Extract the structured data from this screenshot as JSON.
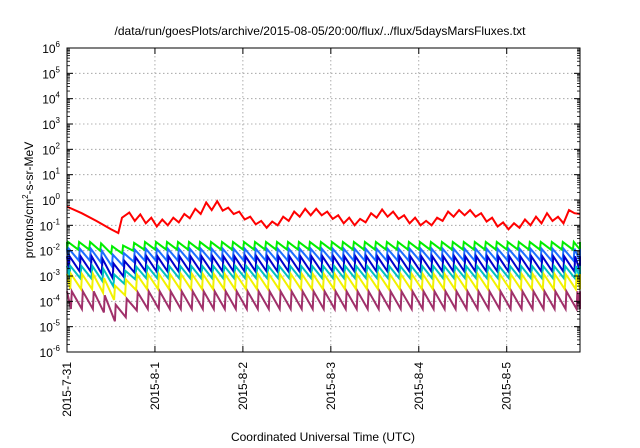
{
  "chart_data": {
    "type": "line",
    "title": "/data/run/goesPlots/archive/2015-08-05/20:00/flux/../flux/5daysMarsFluxes.txt",
    "xlabel": "Coordinated Universal Time (UTC)",
    "ylabel": {
      "base": "protons/cm",
      "sup": "2",
      "rest": "-s-sr-MeV"
    },
    "y_scale": "log",
    "ylim": [
      1e-06,
      1000000.0
    ],
    "y_ticks": [
      {
        "base": "10",
        "exp": "-6",
        "value": -6
      },
      {
        "base": "10",
        "exp": "-5",
        "value": -5
      },
      {
        "base": "10",
        "exp": "-4",
        "value": -4
      },
      {
        "base": "10",
        "exp": "-3",
        "value": -3
      },
      {
        "base": "10",
        "exp": "-2",
        "value": -2
      },
      {
        "base": "10",
        "exp": "-1",
        "value": -1
      },
      {
        "base": "10",
        "exp": "0",
        "value": 0
      },
      {
        "base": "10",
        "exp": "1",
        "value": 1
      },
      {
        "base": "10",
        "exp": "2",
        "value": 2
      },
      {
        "base": "10",
        "exp": "3",
        "value": 3
      },
      {
        "base": "10",
        "exp": "4",
        "value": 4
      },
      {
        "base": "10",
        "exp": "5",
        "value": 5
      },
      {
        "base": "10",
        "exp": "6",
        "value": 6
      }
    ],
    "xlim": [
      "2015-07-31 00:00",
      "2015-08-05 20:00"
    ],
    "x_ticks": [
      {
        "label": "2015-7-31",
        "value": "2015-07-31 00:00"
      },
      {
        "label": "2015-8-1",
        "value": "2015-08-01 00:00"
      },
      {
        "label": "2015-8-2",
        "value": "2015-08-02 00:00"
      },
      {
        "label": "2015-8-3",
        "value": "2015-08-03 00:00"
      },
      {
        "label": "2015-8-4",
        "value": "2015-08-04 00:00"
      },
      {
        "label": "2015-8-5",
        "value": "2015-08-05 00:00"
      }
    ],
    "grid": true,
    "series": [
      {
        "color": "#ff0000",
        "points": [
          [
            "2015-07-31 00:00",
            0.55
          ],
          [
            "2015-07-31 04:00",
            0.3
          ],
          [
            "2015-07-31 08:00",
            0.15
          ],
          [
            "2015-07-31 12:00",
            0.07
          ],
          [
            "2015-07-31 14:00",
            0.05
          ],
          [
            "2015-07-31 15:00",
            0.2
          ],
          [
            "2015-07-31 17:00",
            0.32
          ],
          [
            "2015-07-31 18:30",
            0.15
          ],
          [
            "2015-07-31 20:00",
            0.27
          ],
          [
            "2015-07-31 21:30",
            0.12
          ],
          [
            "2015-07-31 23:00",
            0.2
          ],
          [
            "2015-08-01 00:30",
            0.09
          ],
          [
            "2015-08-01 02:00",
            0.17
          ],
          [
            "2015-08-01 03:30",
            0.1
          ],
          [
            "2015-08-01 05:00",
            0.2
          ],
          [
            "2015-08-01 06:30",
            0.13
          ],
          [
            "2015-08-01 08:00",
            0.28
          ],
          [
            "2015-08-01 09:30",
            0.19
          ],
          [
            "2015-08-01 11:00",
            0.45
          ],
          [
            "2015-08-01 12:30",
            0.28
          ],
          [
            "2015-08-01 14:00",
            0.8
          ],
          [
            "2015-08-01 15:30",
            0.4
          ],
          [
            "2015-08-01 17:00",
            0.9
          ],
          [
            "2015-08-01 18:30",
            0.38
          ],
          [
            "2015-08-01 20:00",
            0.5
          ],
          [
            "2015-08-01 21:30",
            0.28
          ],
          [
            "2015-08-01 23:00",
            0.35
          ],
          [
            "2015-08-02 00:30",
            0.17
          ],
          [
            "2015-08-02 02:00",
            0.22
          ],
          [
            "2015-08-02 03:30",
            0.11
          ],
          [
            "2015-08-02 05:00",
            0.15
          ],
          [
            "2015-08-02 06:30",
            0.08
          ],
          [
            "2015-08-02 08:00",
            0.14
          ],
          [
            "2015-08-02 09:30",
            0.1
          ],
          [
            "2015-08-02 11:00",
            0.22
          ],
          [
            "2015-08-02 12:30",
            0.15
          ],
          [
            "2015-08-02 14:00",
            0.35
          ],
          [
            "2015-08-02 15:30",
            0.22
          ],
          [
            "2015-08-02 17:00",
            0.45
          ],
          [
            "2015-08-02 18:30",
            0.25
          ],
          [
            "2015-08-02 20:00",
            0.45
          ],
          [
            "2015-08-02 21:30",
            0.25
          ],
          [
            "2015-08-02 23:00",
            0.35
          ],
          [
            "2015-08-03 00:30",
            0.18
          ],
          [
            "2015-08-03 02:00",
            0.25
          ],
          [
            "2015-08-03 03:30",
            0.12
          ],
          [
            "2015-08-03 05:00",
            0.2
          ],
          [
            "2015-08-03 06:30",
            0.1
          ],
          [
            "2015-08-03 08:00",
            0.18
          ],
          [
            "2015-08-03 09:30",
            0.13
          ],
          [
            "2015-08-03 11:00",
            0.3
          ],
          [
            "2015-08-03 12:30",
            0.2
          ],
          [
            "2015-08-03 14:00",
            0.42
          ],
          [
            "2015-08-03 15:30",
            0.22
          ],
          [
            "2015-08-03 17:00",
            0.35
          ],
          [
            "2015-08-03 18:30",
            0.18
          ],
          [
            "2015-08-03 20:00",
            0.25
          ],
          [
            "2015-08-03 21:30",
            0.12
          ],
          [
            "2015-08-03 23:00",
            0.2
          ],
          [
            "2015-08-04 00:30",
            0.1
          ],
          [
            "2015-08-04 02:00",
            0.15
          ],
          [
            "2015-08-04 03:30",
            0.1
          ],
          [
            "2015-08-04 05:00",
            0.2
          ],
          [
            "2015-08-04 06:30",
            0.15
          ],
          [
            "2015-08-04 08:00",
            0.35
          ],
          [
            "2015-08-04 09:30",
            0.22
          ],
          [
            "2015-08-04 11:00",
            0.4
          ],
          [
            "2015-08-04 12:30",
            0.25
          ],
          [
            "2015-08-04 14:00",
            0.4
          ],
          [
            "2015-08-04 15:30",
            0.22
          ],
          [
            "2015-08-04 17:00",
            0.3
          ],
          [
            "2015-08-04 18:30",
            0.14
          ],
          [
            "2015-08-04 20:00",
            0.2
          ],
          [
            "2015-08-04 21:30",
            0.09
          ],
          [
            "2015-08-04 23:00",
            0.13
          ],
          [
            "2015-08-05 00:30",
            0.07
          ],
          [
            "2015-08-05 02:00",
            0.12
          ],
          [
            "2015-08-05 03:30",
            0.08
          ],
          [
            "2015-08-05 05:00",
            0.17
          ],
          [
            "2015-08-05 06:30",
            0.1
          ],
          [
            "2015-08-05 08:00",
            0.22
          ],
          [
            "2015-08-05 09:30",
            0.12
          ],
          [
            "2015-08-05 11:00",
            0.3
          ],
          [
            "2015-08-05 12:30",
            0.15
          ],
          [
            "2015-08-05 14:00",
            0.22
          ],
          [
            "2015-08-05 15:30",
            0.12
          ],
          [
            "2015-08-05 17:00",
            0.4
          ],
          [
            "2015-08-05 18:30",
            0.3
          ],
          [
            "2015-08-05 20:00",
            0.28
          ]
        ]
      },
      {
        "color": "#00ee00",
        "sawtooth": {
          "period_hours": 3.0,
          "phase_hours": 0.3,
          "peak": 0.022,
          "trough": 0.011,
          "dip": {
            "center": "2015-07-31 13:30",
            "factor": 0.6
          }
        }
      },
      {
        "color": "#1e6fff",
        "sawtooth": {
          "period_hours": 3.0,
          "phase_hours": 0.5,
          "peak": 0.012,
          "trough": 0.004,
          "dip": {
            "center": "2015-07-31 13:30",
            "factor": 0.5
          }
        }
      },
      {
        "color": "#0000cc",
        "sawtooth": {
          "period_hours": 3.0,
          "phase_hours": 0.7,
          "peak": 0.006,
          "trough": 0.0015,
          "dip": {
            "center": "2015-07-31 13:30",
            "factor": 0.45
          }
        }
      },
      {
        "color": "#00c0c0",
        "sawtooth": {
          "period_hours": 3.0,
          "phase_hours": 0.9,
          "peak": 0.0025,
          "trough": 0.0008,
          "dip": {
            "center": "2015-07-31 13:30",
            "factor": 0.4
          }
        }
      },
      {
        "color": "#f2f200",
        "sawtooth": {
          "period_hours": 3.0,
          "phase_hours": 1.1,
          "peak": 0.0012,
          "trough": 0.0003,
          "dip": {
            "center": "2015-07-31 13:30",
            "factor": 0.3
          }
        }
      },
      {
        "color": "#a0306a",
        "sawtooth": {
          "period_hours": 3.0,
          "phase_hours": 1.3,
          "peak": 0.00025,
          "trough": 5e-05,
          "dip": {
            "center": "2015-07-31 14:00",
            "factor": 0.2
          }
        }
      }
    ]
  }
}
